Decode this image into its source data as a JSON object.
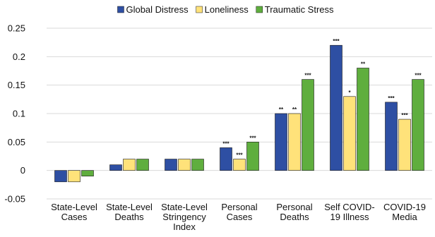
{
  "chart_data": {
    "type": "bar",
    "categories": [
      [
        "State-Level",
        "Cases"
      ],
      [
        "State-Level",
        "Deaths"
      ],
      [
        "State-Level",
        "Stringency",
        "Index"
      ],
      [
        "Personal",
        "Cases"
      ],
      [
        "Personal",
        "Deaths"
      ],
      [
        "Self COVID-",
        "19 Illness"
      ],
      [
        "COVID-19",
        "Media"
      ]
    ],
    "series": [
      {
        "name": "Global Distress",
        "color": "#2E4FA3",
        "values": [
          -0.02,
          0.01,
          0.02,
          0.04,
          0.1,
          0.22,
          0.12
        ],
        "significance": [
          "",
          "",
          "",
          "***",
          "**",
          "***",
          "***"
        ]
      },
      {
        "name": "Loneliness",
        "color": "#FFE27A",
        "values": [
          -0.02,
          0.02,
          0.02,
          0.02,
          0.1,
          0.13,
          0.09
        ],
        "significance": [
          "",
          "",
          "",
          "***",
          "**",
          "*",
          "***"
        ]
      },
      {
        "name": "Traumatic Stress",
        "color": "#5FAE3E",
        "values": [
          -0.01,
          0.02,
          0.02,
          0.05,
          0.16,
          0.18,
          0.16
        ],
        "significance": [
          "",
          "",
          "",
          "***",
          "***",
          "**",
          "***"
        ]
      }
    ],
    "yticks": [
      "-0.05",
      "0",
      "0.05",
      "0.1",
      "0.15",
      "0.2",
      "0.25"
    ],
    "ylim": [
      -0.05,
      0.25
    ],
    "grid": true,
    "legend_position": "top-center",
    "title": "",
    "xlabel": "",
    "ylabel": ""
  }
}
